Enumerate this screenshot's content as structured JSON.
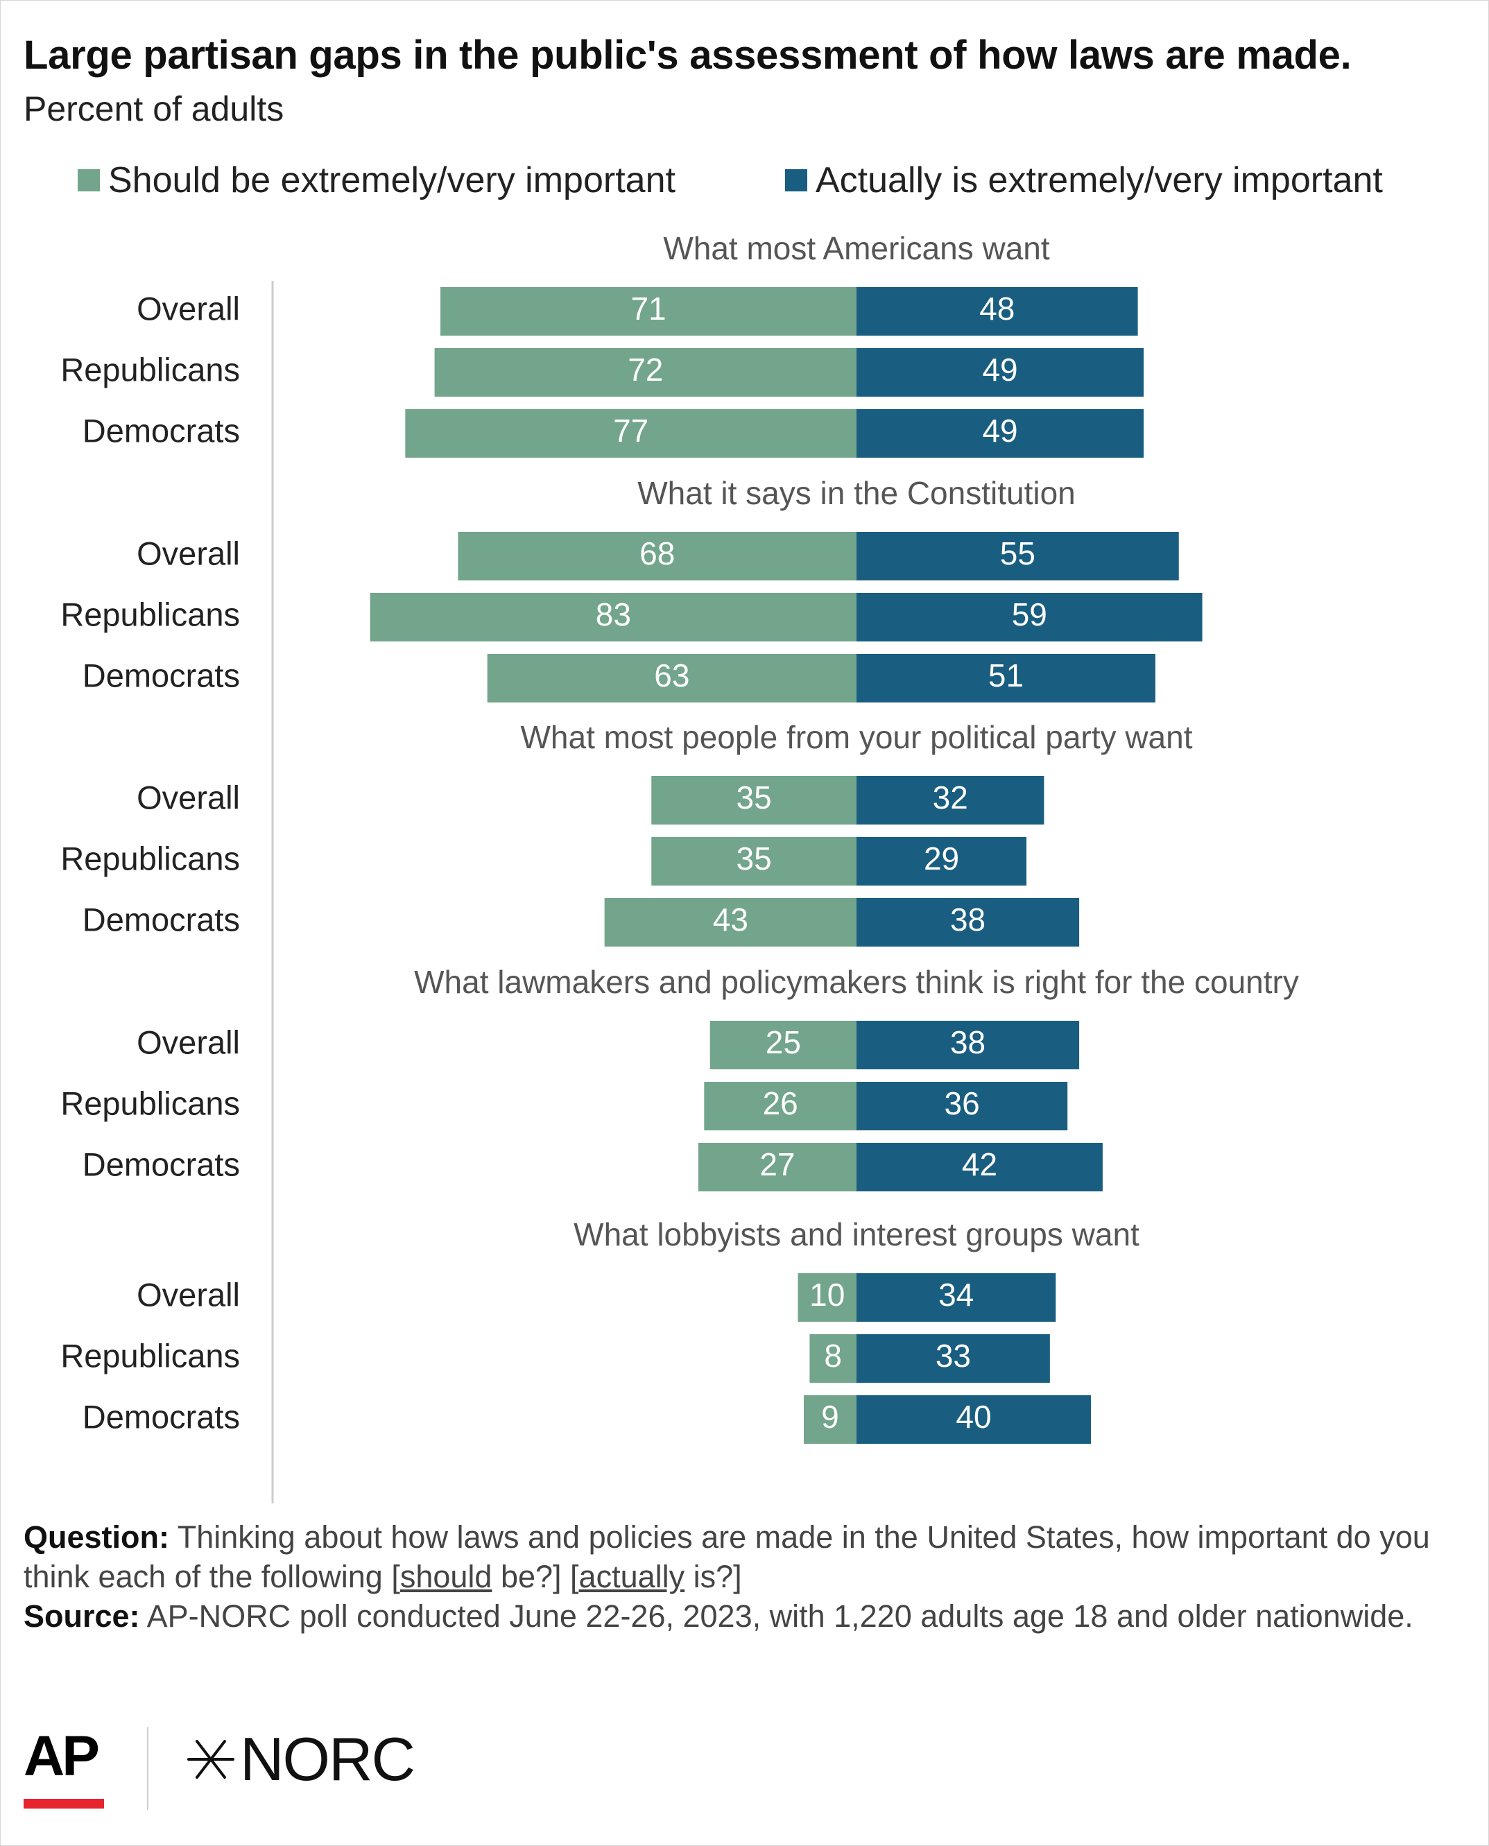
{
  "title": "Large partisan gaps in the public's assessment of how laws are made.",
  "subtitle": "Percent of adults",
  "colors": {
    "should": "#72a58b",
    "actually": "#195e80",
    "axis": "#cccccc"
  },
  "legend": {
    "should": "Should be extremely/very important",
    "actually": "Actually is extremely/very important"
  },
  "chart_data": {
    "type": "bar",
    "orientation": "horizontal-diverging",
    "series": [
      {
        "name": "Should be extremely/very important",
        "key": "should"
      },
      {
        "name": "Actually is extremely/very important",
        "key": "actually"
      }
    ],
    "groups": [
      {
        "label": "What most Americans want",
        "rows": [
          {
            "category": "Overall",
            "should": 71,
            "actually": 48
          },
          {
            "category": "Republicans",
            "should": 72,
            "actually": 49
          },
          {
            "category": "Democrats",
            "should": 77,
            "actually": 49
          }
        ]
      },
      {
        "label": "What it says in the Constitution",
        "rows": [
          {
            "category": "Overall",
            "should": 68,
            "actually": 55
          },
          {
            "category": "Republicans",
            "should": 83,
            "actually": 59
          },
          {
            "category": "Democrats",
            "should": 63,
            "actually": 51
          }
        ]
      },
      {
        "label": "What most people from your political party want",
        "rows": [
          {
            "category": "Overall",
            "should": 35,
            "actually": 32
          },
          {
            "category": "Republicans",
            "should": 35,
            "actually": 29
          },
          {
            "category": "Democrats",
            "should": 43,
            "actually": 38
          }
        ]
      },
      {
        "label": "What lawmakers and policymakers think is right for the country",
        "rows": [
          {
            "category": "Overall",
            "should": 25,
            "actually": 38
          },
          {
            "category": "Republicans",
            "should": 26,
            "actually": 36
          },
          {
            "category": "Democrats",
            "should": 27,
            "actually": 42
          }
        ]
      },
      {
        "label": "What lobbyists and interest groups want",
        "rows": [
          {
            "category": "Overall",
            "should": 10,
            "actually": 34
          },
          {
            "category": "Republicans",
            "should": 8,
            "actually": 33
          },
          {
            "category": "Democrats",
            "should": 9,
            "actually": 40
          }
        ]
      }
    ]
  },
  "notes": {
    "question_label": "Question:",
    "question_text_1": "Thinking about how laws and policies are made in the United States, how important do you think each of the following [",
    "question_should": "should",
    "question_text_2": " be?] [",
    "question_actually": "actually",
    "question_text_3": " is?]",
    "source_label": "Source:",
    "source_text": "AP-NORC poll conducted June 22-26, 2023, with 1,220 adults age 18 and older nationwide."
  },
  "logos": {
    "ap": "AP",
    "norc": "NORC"
  }
}
